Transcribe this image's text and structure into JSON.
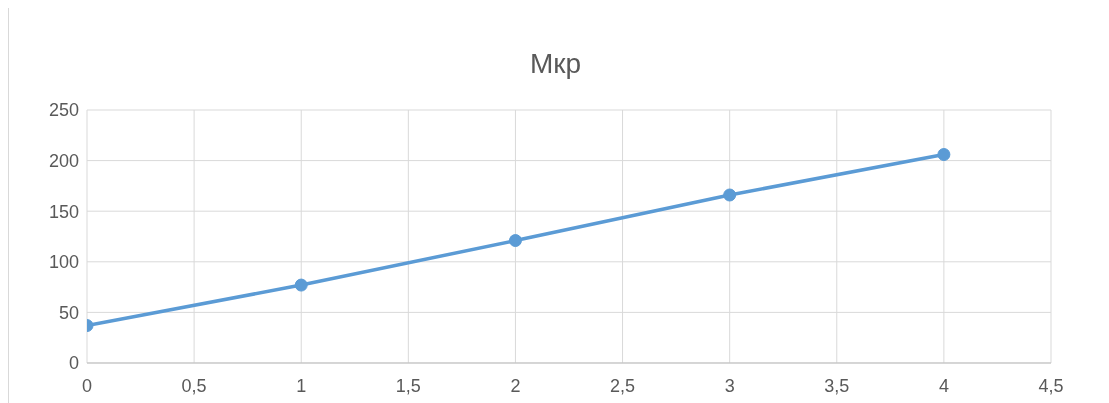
{
  "chart_data": {
    "type": "line",
    "title": "Мкр",
    "x": [
      0,
      1,
      2,
      3,
      4
    ],
    "series": [
      {
        "color": "#5b9bd5",
        "values": [
          37,
          77,
          121,
          166,
          206
        ]
      }
    ],
    "xlim": [
      0,
      4.5
    ],
    "xticks": [
      0,
      {
        "value": 0.5,
        "label": "0,5"
      },
      1,
      {
        "value": 1.5,
        "label": "1,5"
      },
      2,
      {
        "value": 2.5,
        "label": "2,5"
      },
      3,
      {
        "value": 3.5,
        "label": "3,5"
      },
      4,
      {
        "value": 4.5,
        "label": "4,5"
      }
    ],
    "ylim": [
      0,
      250
    ],
    "yticks": [
      0,
      50,
      100,
      150,
      200,
      250
    ],
    "grid": true,
    "marker": "circle"
  }
}
